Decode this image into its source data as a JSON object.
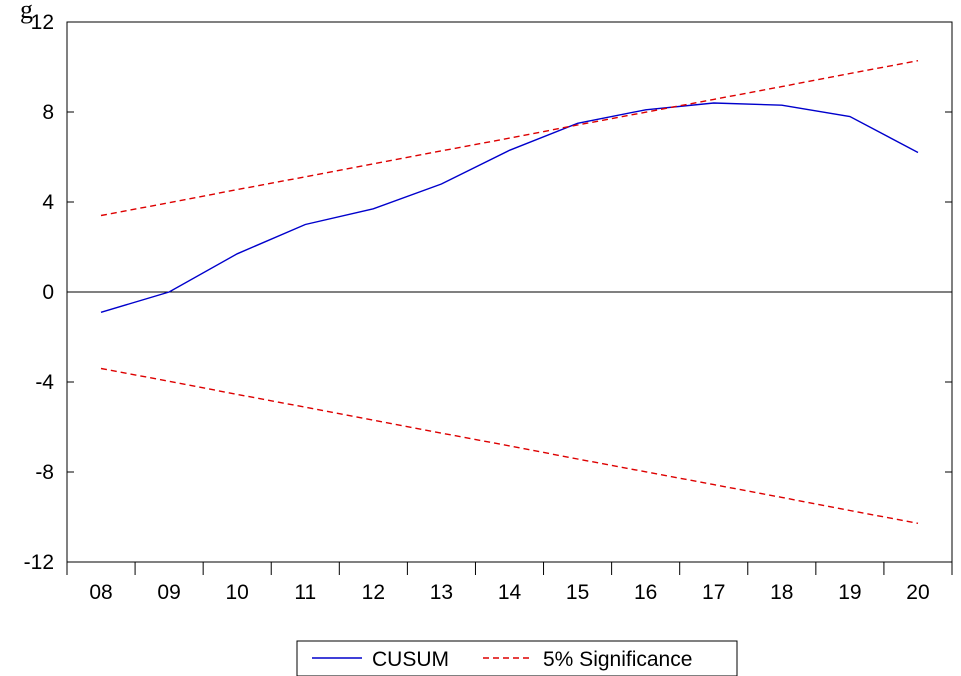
{
  "chart_data": {
    "type": "line",
    "title": "",
    "xlabel": "",
    "ylabel": "",
    "x": [
      "08",
      "09",
      "10",
      "11",
      "12",
      "13",
      "14",
      "15",
      "16",
      "17",
      "18",
      "19",
      "20"
    ],
    "ylim": [
      -12,
      12
    ],
    "yticks": [
      12,
      8,
      4,
      0,
      -4,
      -8,
      -12
    ],
    "ytick_labels": [
      "12",
      "8",
      "4",
      "0",
      "-4",
      "-8",
      "-12"
    ],
    "grid": false,
    "zero_line": true,
    "legend_position": "bottom-center",
    "series": [
      {
        "name": "CUSUM",
        "color": "#0000cc",
        "style": "solid",
        "values": [
          -0.9,
          0.0,
          1.7,
          3.0,
          3.7,
          4.8,
          6.3,
          7.5,
          8.1,
          8.4,
          8.3,
          7.8,
          6.2
        ]
      },
      {
        "name": "5% Significance",
        "color": "#dd0000",
        "style": "dashed",
        "values": [
          3.4,
          3.97,
          4.55,
          5.12,
          5.7,
          6.27,
          6.84,
          7.42,
          7.99,
          8.56,
          9.13,
          9.71,
          10.28
        ]
      },
      {
        "name": "5% Significance",
        "color": "#dd0000",
        "style": "dashed",
        "values": [
          -3.4,
          -3.97,
          -4.55,
          -5.12,
          -5.7,
          -6.27,
          -6.84,
          -7.42,
          -7.99,
          -8.56,
          -9.13,
          -9.71,
          -10.28
        ]
      }
    ]
  },
  "cropped_text": "g"
}
